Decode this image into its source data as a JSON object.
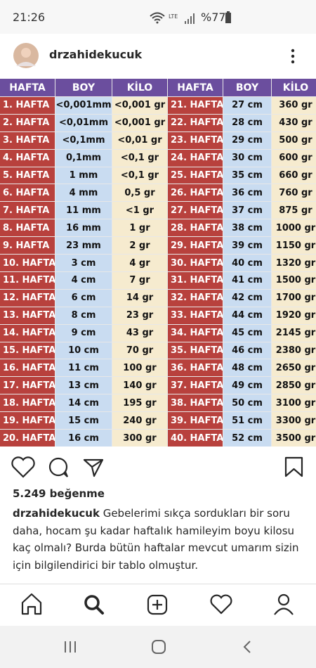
{
  "status_bar": {
    "time": "21:26",
    "network": "LTE",
    "battery": "%77"
  },
  "post": {
    "username": "drzahidekucuk",
    "likes": "5.249 beğenme",
    "caption_user": "drzahidekucuk",
    "caption_text": "Gebelerimi  sıkça sordukları bir soru daha, hocam şu kadar haftalık hamileyim boyu kilosu kaç olmalı? Burda bütün haftalar mevcut umarım sizin için bilgilendirici bir tablo olmuştur."
  },
  "table": {
    "header": [
      "HAFTA",
      "BOY",
      "KİLO",
      "HAFTA",
      "BOY",
      "KİLO"
    ],
    "rows": [
      [
        "1. HAFTA",
        "<0,001mm",
        "<0,001 gr",
        "21. HAFTA",
        "27 cm",
        "360 gr"
      ],
      [
        "2. HAFTA",
        "<0,01mm",
        "<0,001 gr",
        "22. HAFTA",
        "28 cm",
        "430 gr"
      ],
      [
        "3. HAFTA",
        "<0,1mm",
        "<0,01 gr",
        "23. HAFTA",
        "29 cm",
        "500 gr"
      ],
      [
        "4. HAFTA",
        "0,1mm",
        "<0,1 gr",
        "24. HAFTA",
        "30 cm",
        "600 gr"
      ],
      [
        "5. HAFTA",
        "1 mm",
        "<0,1 gr",
        "25. HAFTA",
        "35 cm",
        "660 gr"
      ],
      [
        "6. HAFTA",
        "4 mm",
        "0,5 gr",
        "26. HAFTA",
        "36 cm",
        "760 gr"
      ],
      [
        "7. HAFTA",
        "11 mm",
        "<1 gr",
        "27. HAFTA",
        "37 cm",
        "875 gr"
      ],
      [
        "8. HAFTA",
        "16 mm",
        "1 gr",
        "28. HAFTA",
        "38 cm",
        "1000 gr"
      ],
      [
        "9. HAFTA",
        "23 mm",
        "2 gr",
        "29. HAFTA",
        "39 cm",
        "1150 gr"
      ],
      [
        "10. HAFTA",
        "3 cm",
        "4 gr",
        "30. HAFTA",
        "40 cm",
        "1320 gr"
      ],
      [
        "11. HAFTA",
        "4 cm",
        "7 gr",
        "31. HAFTA",
        "41 cm",
        "1500 gr"
      ],
      [
        "12. HAFTA",
        "6 cm",
        "14 gr",
        "32. HAFTA",
        "42 cm",
        "1700 gr"
      ],
      [
        "13. HAFTA",
        "8 cm",
        "23 gr",
        "33. HAFTA",
        "44 cm",
        "1920 gr"
      ],
      [
        "14. HAFTA",
        "9 cm",
        "43 gr",
        "34. HAFTA",
        "45 cm",
        "2145 gr"
      ],
      [
        "15. HAFTA",
        "10 cm",
        "70 gr",
        "35. HAFTA",
        "46 cm",
        "2380 gr"
      ],
      [
        "16. HAFTA",
        "11 cm",
        "100 gr",
        "36. HAFTA",
        "48 cm",
        "2650 gr"
      ],
      [
        "17. HAFTA",
        "13 cm",
        "140 gr",
        "37. HAFTA",
        "49 cm",
        "2850 gr"
      ],
      [
        "18. HAFTA",
        "14 cm",
        "195 gr",
        "38. HAFTA",
        "50 cm",
        "3100 gr"
      ],
      [
        "19. HAFTA",
        "15 cm",
        "240 gr",
        "39. HAFTA",
        "51 cm",
        "3300 gr"
      ],
      [
        "20. HAFTA",
        "16 cm",
        "300 gr",
        "40. HAFTA",
        "52 cm",
        "3500 gr"
      ]
    ]
  }
}
